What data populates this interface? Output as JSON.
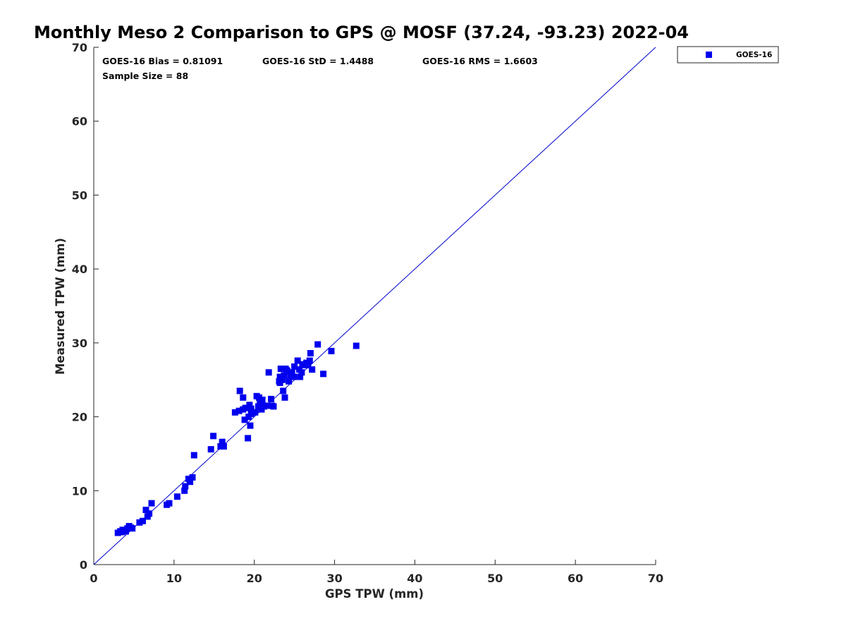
{
  "chart_data": {
    "type": "scatter",
    "title": "Monthly Meso 2 Comparison to GPS @ MOSF (37.24, -93.23) 2022-04",
    "xlabel": "GPS TPW (mm)",
    "ylabel": "Measured TPW (mm)",
    "xlim": [
      0,
      70
    ],
    "ylim": [
      0,
      70
    ],
    "xticks": [
      "0",
      "10",
      "20",
      "30",
      "40",
      "50",
      "60",
      "70"
    ],
    "yticks": [
      "0",
      "10",
      "20",
      "30",
      "40",
      "50",
      "60",
      "70"
    ],
    "grid": false,
    "legend_position": "outside-top-right",
    "stats": {
      "bias": "GOES-16 Bias = 0.81091",
      "std": "GOES-16 StD = 1.4488",
      "rms": "GOES-16 RMS = 1.6603",
      "sample_size": "Sample Size = 88"
    },
    "reference_line": {
      "name": "1:1 line",
      "x": [
        0,
        70
      ],
      "y": [
        0,
        70
      ],
      "color": "#0000cc"
    },
    "series": [
      {
        "name": "GOES-16",
        "color": "#0000ee",
        "marker": "square",
        "points": [
          [
            3.0,
            4.3
          ],
          [
            3.3,
            4.5
          ],
          [
            3.5,
            4.4
          ],
          [
            3.6,
            4.7
          ],
          [
            3.8,
            4.6
          ],
          [
            4.0,
            4.5
          ],
          [
            4.2,
            4.9
          ],
          [
            4.4,
            5.2
          ],
          [
            4.6,
            5.0
          ],
          [
            4.8,
            4.9
          ],
          [
            5.7,
            5.7
          ],
          [
            6.1,
            5.9
          ],
          [
            6.5,
            7.4
          ],
          [
            6.7,
            6.5
          ],
          [
            6.9,
            6.9
          ],
          [
            7.2,
            8.3
          ],
          [
            9.1,
            8.1
          ],
          [
            9.4,
            8.3
          ],
          [
            10.4,
            9.2
          ],
          [
            11.3,
            10.0
          ],
          [
            11.4,
            10.6
          ],
          [
            11.8,
            11.6
          ],
          [
            12.0,
            11.2
          ],
          [
            12.3,
            11.8
          ],
          [
            12.5,
            14.8
          ],
          [
            14.6,
            15.6
          ],
          [
            14.9,
            17.4
          ],
          [
            15.8,
            16.0
          ],
          [
            16.0,
            16.6
          ],
          [
            16.2,
            16.0
          ],
          [
            17.6,
            20.6
          ],
          [
            18.1,
            20.8
          ],
          [
            18.2,
            23.5
          ],
          [
            18.6,
            22.6
          ],
          [
            18.6,
            21.0
          ],
          [
            18.8,
            19.6
          ],
          [
            18.9,
            21.2
          ],
          [
            19.2,
            17.1
          ],
          [
            19.3,
            20.0
          ],
          [
            19.4,
            21.6
          ],
          [
            19.5,
            18.8
          ],
          [
            19.6,
            21.1
          ],
          [
            19.8,
            20.6
          ],
          [
            20.1,
            20.6
          ],
          [
            20.3,
            22.8
          ],
          [
            20.5,
            21.4
          ],
          [
            20.6,
            22.6
          ],
          [
            20.7,
            21.8
          ],
          [
            20.9,
            21.0
          ],
          [
            21.0,
            22.3
          ],
          [
            21.2,
            21.4
          ],
          [
            21.5,
            21.5
          ],
          [
            21.8,
            26.0
          ],
          [
            22.1,
            22.4
          ],
          [
            22.2,
            21.5
          ],
          [
            22.4,
            21.4
          ],
          [
            23.1,
            24.8
          ],
          [
            23.2,
            25.4
          ],
          [
            23.3,
            26.5
          ],
          [
            23.5,
            25.0
          ],
          [
            23.6,
            23.5
          ],
          [
            23.7,
            25.6
          ],
          [
            23.8,
            22.6
          ],
          [
            23.9,
            26.5
          ],
          [
            24.1,
            26.2
          ],
          [
            24.3,
            24.8
          ],
          [
            24.5,
            25.6
          ],
          [
            24.7,
            26.0
          ],
          [
            24.9,
            25.4
          ],
          [
            25.0,
            26.8
          ],
          [
            25.4,
            27.6
          ],
          [
            25.6,
            26.4
          ],
          [
            25.7,
            25.4
          ],
          [
            25.9,
            26.0
          ],
          [
            26.0,
            27.1
          ],
          [
            26.3,
            27.0
          ],
          [
            26.5,
            27.3
          ],
          [
            26.7,
            27.0
          ],
          [
            26.9,
            27.6
          ],
          [
            27.0,
            28.6
          ],
          [
            27.2,
            26.4
          ],
          [
            27.9,
            29.8
          ],
          [
            28.6,
            25.8
          ],
          [
            29.6,
            28.9
          ],
          [
            32.7,
            29.6
          ],
          [
            23.2,
            24.6
          ],
          [
            24.0,
            26.3
          ],
          [
            19.6,
            20.4
          ]
        ]
      }
    ]
  }
}
